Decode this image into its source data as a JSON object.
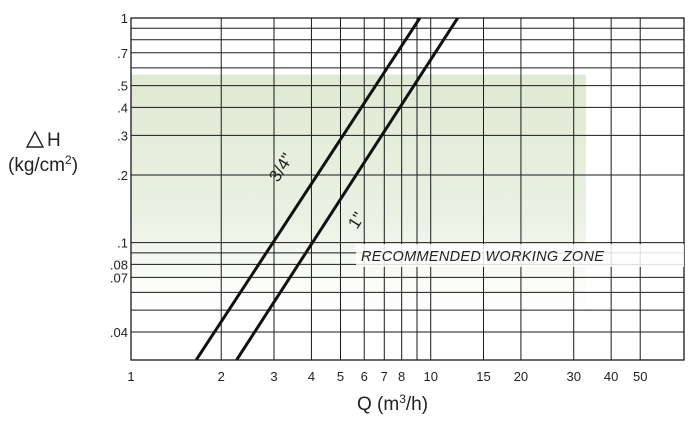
{
  "chart_data": {
    "type": "line",
    "x_scale": "log",
    "y_scale": "log",
    "xlabel_prefix": "Q (m",
    "xlabel_sup": "3",
    "xlabel_suffix": "/h)",
    "ylabel_line1": "H",
    "ylabel_line2_prefix": "(kg/cm",
    "ylabel_line2_sup": "2",
    "ylabel_line2_suffix": ")",
    "xlim": [
      1,
      70
    ],
    "ylim": [
      0.03,
      1
    ],
    "x_ticks": [
      {
        "value": 1,
        "label": "1"
      },
      {
        "value": 2,
        "label": "2"
      },
      {
        "value": 3,
        "label": "3"
      },
      {
        "value": 4,
        "label": "4"
      },
      {
        "value": 5,
        "label": "5"
      },
      {
        "value": 6,
        "label": "6"
      },
      {
        "value": 7,
        "label": "7"
      },
      {
        "value": 8,
        "label": "8"
      },
      {
        "value": 10,
        "label": "10"
      },
      {
        "value": 15,
        "label": "15"
      },
      {
        "value": 20,
        "label": "20"
      },
      {
        "value": 30,
        "label": "30"
      },
      {
        "value": 40,
        "label": "40"
      },
      {
        "value": 50,
        "label": "50"
      }
    ],
    "x_grid": [
      2,
      3,
      4,
      5,
      6,
      7,
      8,
      9,
      10,
      15,
      20,
      30,
      40,
      50,
      70
    ],
    "y_ticks": [
      {
        "value": 1,
        "label": "1"
      },
      {
        "value": 0.7,
        "label": ".7"
      },
      {
        "value": 0.5,
        "label": ".5"
      },
      {
        "value": 0.4,
        "label": ".4"
      },
      {
        "value": 0.3,
        "label": ".3"
      },
      {
        "value": 0.2,
        "label": ".2"
      },
      {
        "value": 0.1,
        "label": ".1"
      },
      {
        "value": 0.08,
        "label": ".08"
      },
      {
        "value": 0.07,
        "label": ".07"
      },
      {
        "value": 0.04,
        "label": ".04"
      }
    ],
    "y_grid": [
      1,
      0.9,
      0.8,
      0.7,
      0.6,
      0.5,
      0.4,
      0.3,
      0.2,
      0.1,
      0.09,
      0.08,
      0.07,
      0.06,
      0.05,
      0.04,
      0.03
    ],
    "zone": {
      "label": "RECOMMENDED WORKING ZONE",
      "x_range": [
        1,
        33
      ],
      "y_range": [
        0.035,
        0.56
      ],
      "color": "#e3ecd9"
    },
    "series": [
      {
        "name": "3/4\"",
        "points": [
          [
            1.65,
            0.03
          ],
          [
            9.2,
            1.0
          ]
        ]
      },
      {
        "name": "1\"",
        "points": [
          [
            2.25,
            0.03
          ],
          [
            12.3,
            1.0
          ]
        ]
      }
    ],
    "line_color": "#111111",
    "grid_color": "#1a1a1a"
  }
}
